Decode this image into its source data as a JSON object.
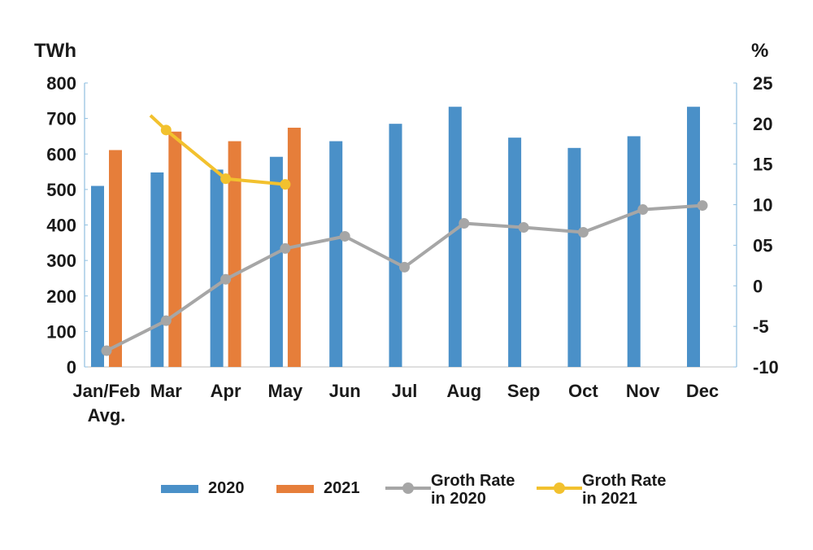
{
  "chart_data": {
    "type": "bar",
    "categories": [
      [
        "Jan/Feb",
        "Avg."
      ],
      [
        "Mar"
      ],
      [
        "Apr"
      ],
      [
        "May"
      ],
      [
        "Jun"
      ],
      [
        "Jul"
      ],
      [
        "Aug"
      ],
      [
        "Sep"
      ],
      [
        "Oct"
      ],
      [
        "Nov"
      ],
      [
        "Dec"
      ]
    ],
    "left_axis": {
      "unit": "TWh",
      "ylim": [
        0,
        800
      ],
      "ticks": [
        "0",
        "100",
        "200",
        "300",
        "400",
        "500",
        "600",
        "700",
        "800"
      ]
    },
    "right_axis": {
      "unit": "%",
      "ylim": [
        -10,
        25
      ],
      "ticks": [
        "-10",
        "-5",
        "0",
        "05",
        "10",
        "15",
        "20",
        "25"
      ]
    },
    "series": [
      {
        "name": "2020",
        "kind": "bar",
        "axis": "left",
        "color": "#4a90c8",
        "values": [
          510,
          548,
          556,
          592,
          636,
          685,
          733,
          646,
          617,
          650,
          733
        ]
      },
      {
        "name": "2021",
        "kind": "bar",
        "axis": "left",
        "color": "#e67e3a",
        "values": [
          611,
          663,
          636,
          674,
          null,
          null,
          null,
          null,
          null,
          null,
          null
        ]
      },
      {
        "name": [
          "Groth Rate",
          "in 2020"
        ],
        "kind": "line",
        "axis": "right",
        "color": "#a6a6a6",
        "values": [
          -8,
          -4.3,
          0.8,
          4.6,
          6.1,
          2.3,
          7.7,
          7.2,
          6.6,
          9.4,
          9.9
        ]
      },
      {
        "name": [
          "Groth Rate",
          "in 2021"
        ],
        "kind": "line",
        "axis": "right",
        "color": "#f2c12e",
        "values": [
          21,
          19.2,
          13.2,
          12.5,
          null,
          null,
          null,
          null,
          null,
          null,
          null
        ]
      }
    ],
    "grid": false,
    "legend_position": "bottom"
  }
}
